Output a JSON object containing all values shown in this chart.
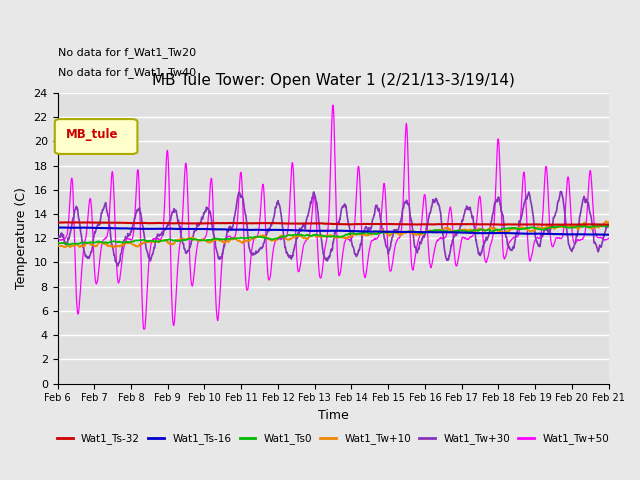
{
  "title": "MB Tule Tower: Open Water 1 (2/21/13-3/19/14)",
  "xlabel": "Time",
  "ylabel": "Temperature (C)",
  "annotations": [
    "No data for f_Wat1_Tw20",
    "No data for f_Wat1_Tw40"
  ],
  "legend_label": "MB_tule",
  "ylim": [
    0,
    24
  ],
  "xlim": [
    0,
    15
  ],
  "xtick_labels": [
    "Feb 6",
    "Feb 7",
    "Feb 8",
    "Feb 9",
    "Feb 10",
    "Feb 11",
    "Feb 12",
    "Feb 13",
    "Feb 14",
    "Feb 15",
    "Feb 16",
    "Feb 17",
    "Feb 18",
    "Feb 19",
    "Feb 20",
    "Feb 21"
  ],
  "series_colors": {
    "Wat1_Ts-32": "#cc0000",
    "Wat1_Ts-16": "#0000cc",
    "Wat1_Ts0": "#00bb00",
    "Wat1_Tw+10": "#ee8800",
    "Wat1_Tw+30": "#8833bb",
    "Wat1_Tw+50": "#ff00ff"
  },
  "background_color": "#e8e8e8",
  "plot_bg_color": "#e0e0e0",
  "grid_color": "#ffffff",
  "figsize": [
    6.4,
    4.8
  ],
  "dpi": 100
}
